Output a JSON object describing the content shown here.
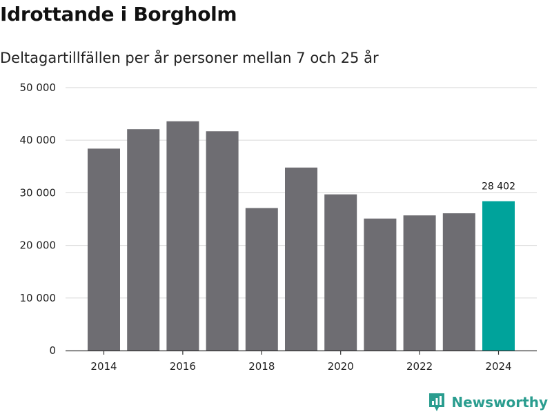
{
  "chart_data": {
    "type": "bar",
    "title": "Idrottande i Borgholm",
    "subtitle": "Deltagartillfällen per år personer mellan 7 och 25 år",
    "categories": [
      "2014",
      "2015",
      "2016",
      "2017",
      "2018",
      "2019",
      "2020",
      "2021",
      "2022",
      "2023",
      "2024"
    ],
    "values": [
      38400,
      42100,
      43600,
      41700,
      27100,
      34800,
      29700,
      25100,
      25700,
      26100,
      28402
    ],
    "x_tick_labels": [
      "2014",
      "2016",
      "2018",
      "2020",
      "2022",
      "2024"
    ],
    "y_ticks": [
      0,
      10000,
      20000,
      30000,
      40000,
      50000
    ],
    "y_tick_labels": [
      "0",
      "10 000",
      "20 000",
      "30 000",
      "40 000",
      "50 000"
    ],
    "ylim": [
      0,
      50000
    ],
    "grid": "horizontal",
    "highlight_label": "28 402",
    "colors": {
      "bar": "#6e6d72",
      "highlight": "#00a39b",
      "grid": "#dddddd",
      "axis": "#333333"
    }
  },
  "brand": {
    "name": "Newsworthy",
    "icon": "newsworthy-logo-icon",
    "color": "#2a9d8f"
  }
}
